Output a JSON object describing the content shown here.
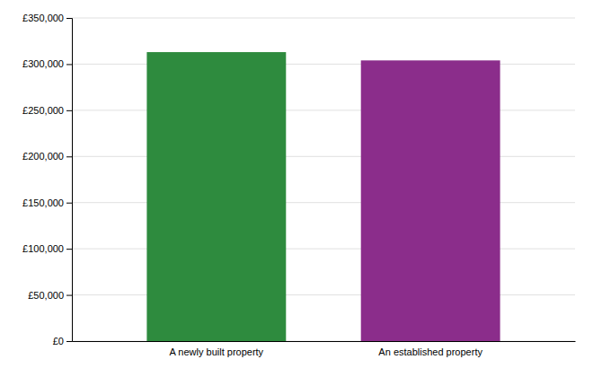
{
  "chart_data": {
    "type": "bar",
    "categories": [
      "A newly built property",
      "An established property"
    ],
    "values": [
      313000,
      304000
    ],
    "colors": [
      "#2e8b3e",
      "#8b2d8b"
    ],
    "ylim": [
      0,
      350000
    ],
    "yticks": [
      {
        "value": 0,
        "label": "£0"
      },
      {
        "value": 50000,
        "label": "£50,000"
      },
      {
        "value": 100000,
        "label": "£100,000"
      },
      {
        "value": 150000,
        "label": "£150,000"
      },
      {
        "value": 200000,
        "label": "£200,000"
      },
      {
        "value": 250000,
        "label": "£250,000"
      },
      {
        "value": 300000,
        "label": "£300,000"
      },
      {
        "value": 350000,
        "label": "£350,000"
      }
    ],
    "grid": true
  }
}
